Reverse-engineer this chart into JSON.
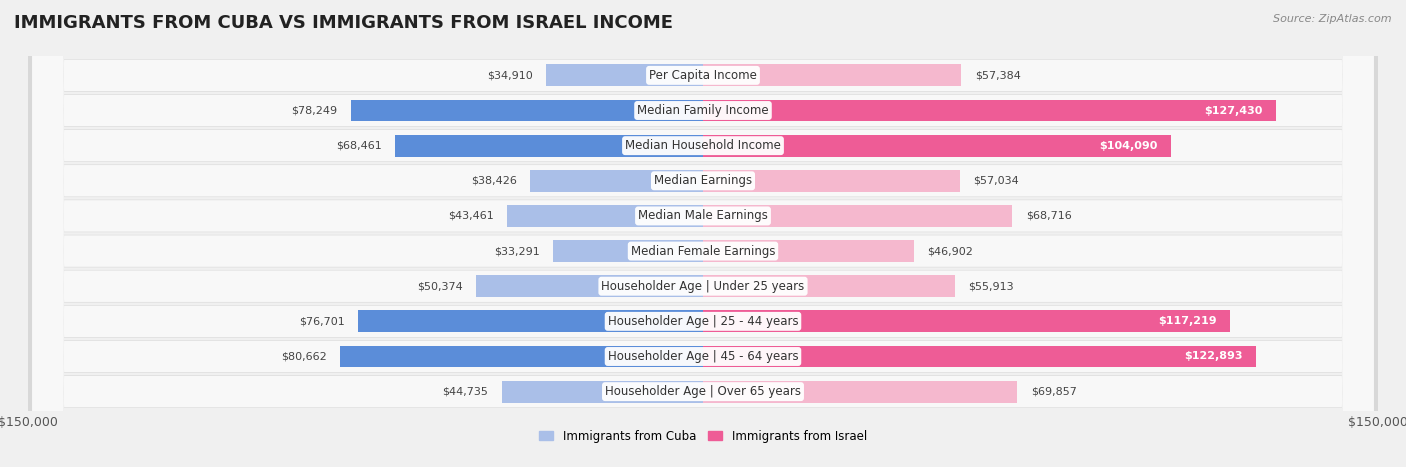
{
  "title": "IMMIGRANTS FROM CUBA VS IMMIGRANTS FROM ISRAEL INCOME",
  "source": "Source: ZipAtlas.com",
  "categories": [
    "Per Capita Income",
    "Median Family Income",
    "Median Household Income",
    "Median Earnings",
    "Median Male Earnings",
    "Median Female Earnings",
    "Householder Age | Under 25 years",
    "Householder Age | 25 - 44 years",
    "Householder Age | 45 - 64 years",
    "Householder Age | Over 65 years"
  ],
  "cuba_values": [
    34910,
    78249,
    68461,
    38426,
    43461,
    33291,
    50374,
    76701,
    80662,
    44735
  ],
  "israel_values": [
    57384,
    127430,
    104090,
    57034,
    68716,
    46902,
    55913,
    117219,
    122893,
    69857
  ],
  "cuba_color_light": "#AABFE8",
  "cuba_color_dark": "#5B8DD9",
  "israel_color_light": "#F5B8CE",
  "israel_color_dark": "#EE5C96",
  "cuba_label": "Immigrants from Cuba",
  "israel_label": "Immigrants from Israel",
  "max_value": 150000,
  "bg_color": "#f0f0f0",
  "row_bg_color": "#e8e8e8",
  "row_inner_color": "#f8f8f8",
  "title_fontsize": 13,
  "label_fontsize": 8.5,
  "tick_fontsize": 9,
  "value_fontsize": 8
}
